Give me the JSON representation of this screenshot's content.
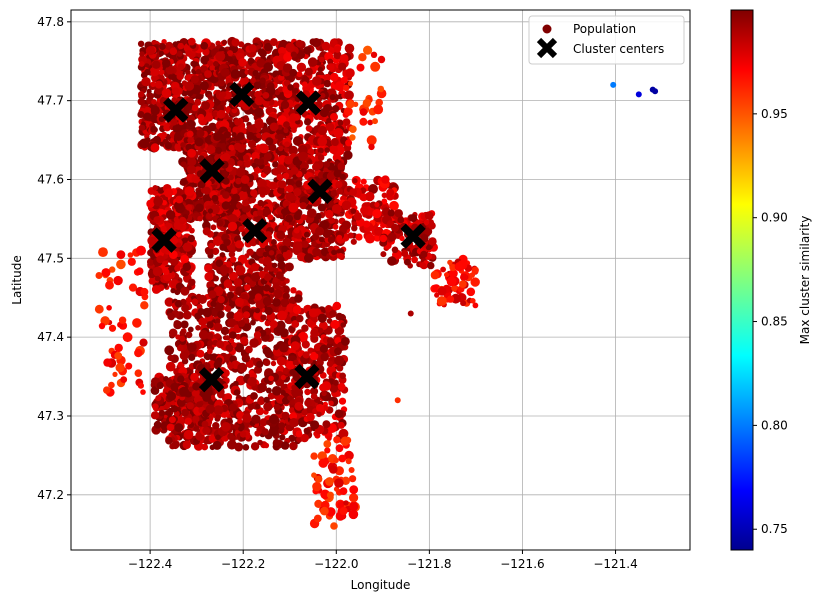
{
  "chart_data": {
    "type": "scatter",
    "title": "",
    "xlabel": "Longitude",
    "ylabel": "Latitude",
    "xlim": [
      -122.57,
      -121.24
    ],
    "ylim": [
      47.13,
      47.815
    ],
    "xticks": [
      -122.4,
      -122.2,
      -122.0,
      -121.8,
      -121.6,
      -121.4
    ],
    "xtick_labels": [
      "−122.4",
      "−122.2",
      "−122.0",
      "−121.8",
      "−121.6",
      "−121.4"
    ],
    "yticks": [
      47.2,
      47.3,
      47.4,
      47.5,
      47.6,
      47.7,
      47.8
    ],
    "ytick_labels": [
      "47.2",
      "47.3",
      "47.4",
      "47.5",
      "47.6",
      "47.7",
      "47.8"
    ],
    "grid": true,
    "legend": {
      "placement": "top-right",
      "entries": [
        {
          "label": "Population",
          "marker": "circle",
          "color": "#800000"
        },
        {
          "label": "Cluster centers",
          "marker": "x",
          "color": "#000000"
        }
      ]
    },
    "colorbar": {
      "label": "Max cluster similarity",
      "colormap": "jet",
      "range": [
        0.74,
        1.0
      ],
      "ticks": [
        0.75,
        0.8,
        0.85,
        0.9,
        0.95
      ],
      "tick_labels": [
        "0.75",
        "0.80",
        "0.85",
        "0.90",
        "0.95"
      ]
    },
    "series": [
      {
        "name": "Population",
        "regions": [
          {
            "lon": [
              -122.42,
              -122.25
            ],
            "lat": [
              47.64,
              47.775
            ],
            "similarity": 0.995,
            "count": 520
          },
          {
            "lon": [
              -122.25,
              -122.1
            ],
            "lat": [
              47.62,
              47.775
            ],
            "similarity": 0.995,
            "count": 420
          },
          {
            "lon": [
              -122.12,
              -121.97
            ],
            "lat": [
              47.63,
              47.775
            ],
            "similarity": 0.99,
            "count": 320
          },
          {
            "lon": [
              -122.33,
              -122.2
            ],
            "lat": [
              47.55,
              47.66
            ],
            "similarity": 0.995,
            "count": 360
          },
          {
            "lon": [
              -122.4,
              -122.31
            ],
            "lat": [
              47.46,
              47.59
            ],
            "similarity": 0.99,
            "count": 300
          },
          {
            "lon": [
              -122.28,
              -122.1
            ],
            "lat": [
              47.44,
              47.63
            ],
            "similarity": 0.995,
            "count": 520
          },
          {
            "lon": [
              -122.12,
              -121.98
            ],
            "lat": [
              47.5,
              47.63
            ],
            "similarity": 0.995,
            "count": 340
          },
          {
            "lon": [
              -122.0,
              -121.87
            ],
            "lat": [
              47.52,
              47.6
            ],
            "similarity": 0.985,
            "count": 110
          },
          {
            "lon": [
              -121.9,
              -121.79
            ],
            "lat": [
              47.49,
              47.56
            ],
            "similarity": 0.99,
            "count": 110
          },
          {
            "lon": [
              -121.79,
              -121.7
            ],
            "lat": [
              47.44,
              47.5
            ],
            "similarity": 0.975,
            "count": 60
          },
          {
            "lon": [
              -122.36,
              -122.08
            ],
            "lat": [
              47.26,
              47.46
            ],
            "similarity": 0.995,
            "count": 700
          },
          {
            "lon": [
              -122.39,
              -122.27
            ],
            "lat": [
              47.28,
              47.35
            ],
            "similarity": 0.995,
            "count": 220
          },
          {
            "lon": [
              -122.1,
              -121.98
            ],
            "lat": [
              47.27,
              47.44
            ],
            "similarity": 0.99,
            "count": 260
          },
          {
            "lon": [
              -122.05,
              -121.96
            ],
            "lat": [
              47.16,
              47.27
            ],
            "similarity": 0.97,
            "count": 70
          },
          {
            "lon": [
              -122.51,
              -122.41
            ],
            "lat": [
              47.33,
              47.51
            ],
            "similarity": 0.97,
            "count": 55
          },
          {
            "lon": [
              -121.98,
              -121.9
            ],
            "lat": [
              47.64,
              47.77
            ],
            "similarity": 0.965,
            "count": 30
          }
        ],
        "outliers": [
          {
            "lon": -121.405,
            "lat": 47.72,
            "similarity": 0.8
          },
          {
            "lon": -121.35,
            "lat": 47.708,
            "similarity": 0.76
          },
          {
            "lon": -121.32,
            "lat": 47.714,
            "similarity": 0.745
          },
          {
            "lon": -121.315,
            "lat": 47.712,
            "similarity": 0.745
          },
          {
            "lon": -121.868,
            "lat": 47.32,
            "similarity": 0.96
          },
          {
            "lon": -121.84,
            "lat": 47.43,
            "similarity": 0.99
          }
        ]
      },
      {
        "name": "Cluster centers",
        "points": [
          {
            "lon": -122.345,
            "lat": 47.688
          },
          {
            "lon": -122.203,
            "lat": 47.708
          },
          {
            "lon": -122.06,
            "lat": 47.697
          },
          {
            "lon": -122.267,
            "lat": 47.611
          },
          {
            "lon": -122.035,
            "lat": 47.585
          },
          {
            "lon": -122.37,
            "lat": 47.523
          },
          {
            "lon": -122.175,
            "lat": 47.535
          },
          {
            "lon": -121.835,
            "lat": 47.528
          },
          {
            "lon": -122.268,
            "lat": 47.346
          },
          {
            "lon": -122.063,
            "lat": 47.35
          }
        ]
      }
    ]
  }
}
